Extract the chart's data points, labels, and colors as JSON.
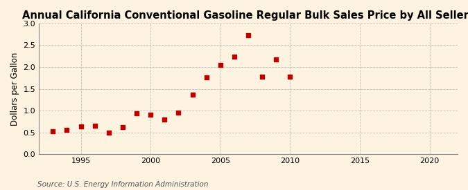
{
  "title": "Annual California Conventional Gasoline Regular Bulk Sales Price by All Sellers",
  "ylabel": "Dollars per Gallon",
  "source": "Source: U.S. Energy Information Administration",
  "background_color": "#fdf3e0",
  "plot_bg_color": "#fdf3e0",
  "grid_color": "#b0b0b0",
  "years": [
    1993,
    1994,
    1995,
    1996,
    1997,
    1998,
    1999,
    2000,
    2001,
    2002,
    2003,
    2004,
    2005,
    2006,
    2007,
    2008,
    2009,
    2010
  ],
  "values": [
    0.53,
    0.55,
    0.64,
    0.66,
    0.5,
    0.62,
    0.93,
    0.9,
    0.79,
    0.95,
    1.36,
    1.77,
    2.05,
    2.24,
    2.73,
    1.78,
    2.17,
    1.78
  ],
  "marker_color": "#bb0000",
  "marker_size": 18,
  "xlim": [
    1992,
    2022
  ],
  "ylim": [
    0.0,
    3.0
  ],
  "xticks": [
    1995,
    2000,
    2005,
    2010,
    2015,
    2020
  ],
  "yticks": [
    0.0,
    0.5,
    1.0,
    1.5,
    2.0,
    2.5,
    3.0
  ],
  "title_fontsize": 10.5,
  "label_fontsize": 8.5,
  "tick_fontsize": 8,
  "source_fontsize": 7.5
}
